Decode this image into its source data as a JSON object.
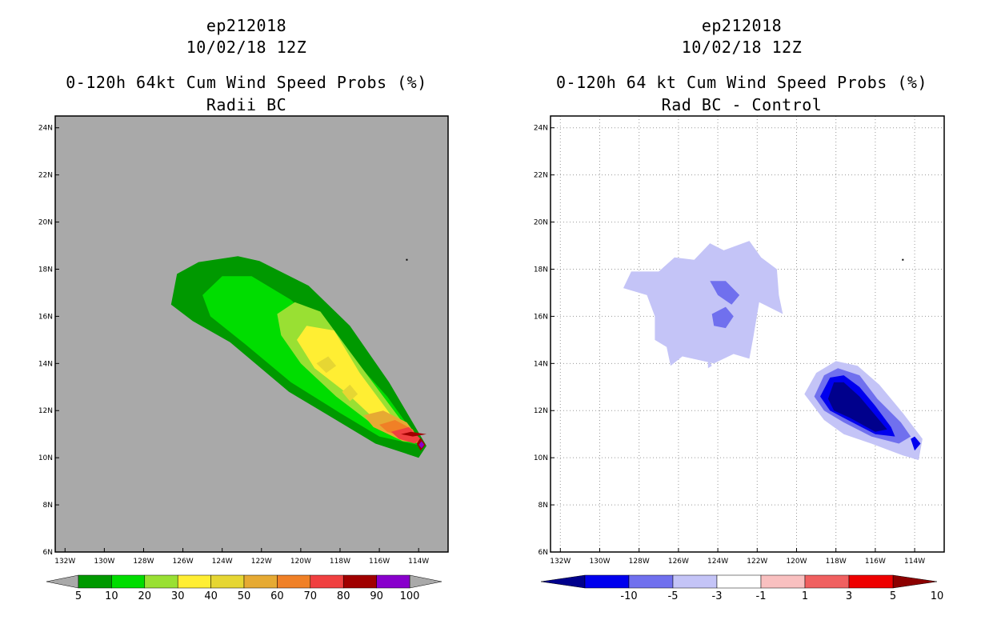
{
  "left_panel": {
    "title_lines": [
      "ep212018",
      "10/02/18 12Z",
      "0-120h 64kt Cum Wind Speed Probs (%)",
      "Radii BC"
    ]
  },
  "right_panel": {
    "title_lines": [
      "ep212018",
      "10/02/18 12Z",
      "0-120h 64 kt Cum Wind Speed Probs (%)",
      "Rad BC - Control"
    ]
  },
  "chart_data": [
    {
      "type": "contour-map",
      "title": "0-120h 64kt Cum Wind Speed Probs (%)",
      "subtitle": "Radii BC",
      "storm": "ep212018",
      "date": "10/02/18 12Z",
      "background_color": "#a9a9a9",
      "lon_ticks": [
        "132W",
        "130W",
        "128W",
        "126W",
        "124W",
        "122W",
        "120W",
        "118W",
        "116W",
        "114W"
      ],
      "lat_ticks": [
        "6N",
        "8N",
        "10N",
        "12N",
        "14N",
        "16N",
        "18N",
        "20N",
        "22N",
        "24N"
      ],
      "lon_range": [
        -132.5,
        -112.5
      ],
      "lat_range": [
        6,
        24.5
      ],
      "grid": false,
      "colorbar": {
        "labels": [
          "5",
          "10",
          "20",
          "30",
          "40",
          "50",
          "60",
          "70",
          "80",
          "90",
          "100"
        ],
        "colors": [
          "#009900",
          "#00dd00",
          "#99e033",
          "#ffee33",
          "#e6d633",
          "#e6aa33",
          "#f08026",
          "#f04040",
          "#a00000",
          "#8800cc"
        ]
      },
      "contours": [
        {
          "level": 5,
          "color": "#009900",
          "points": [
            [
              -126.6,
              16.5
            ],
            [
              -126.3,
              17.8
            ],
            [
              -125.2,
              18.3
            ],
            [
              -123.2,
              18.55
            ],
            [
              -122.1,
              18.35
            ],
            [
              -119.6,
              17.3
            ],
            [
              -117.5,
              15.6
            ],
            [
              -115.5,
              13.2
            ],
            [
              -113.6,
              10.5
            ],
            [
              -114.0,
              10.0
            ],
            [
              -116.2,
              10.6
            ],
            [
              -118.2,
              11.6
            ],
            [
              -120.6,
              12.8
            ],
            [
              -123.6,
              14.9
            ],
            [
              -125.5,
              15.8
            ]
          ]
        },
        {
          "level": 10,
          "color": "#00dd00",
          "points": [
            [
              -125.0,
              16.9
            ],
            [
              -124.0,
              17.7
            ],
            [
              -122.5,
              17.7
            ],
            [
              -120.5,
              16.7
            ],
            [
              -118.0,
              14.8
            ],
            [
              -115.6,
              12.6
            ],
            [
              -113.8,
              10.5
            ],
            [
              -116.0,
              10.9
            ],
            [
              -118.0,
              11.9
            ],
            [
              -120.5,
              13.2
            ],
            [
              -122.8,
              14.8
            ],
            [
              -124.6,
              16.0
            ]
          ]
        },
        {
          "level": 20,
          "color": "#99e033",
          "points": [
            [
              -121.2,
              16.1
            ],
            [
              -120.3,
              16.6
            ],
            [
              -119.0,
              16.2
            ],
            [
              -117.5,
              14.5
            ],
            [
              -115.8,
              12.6
            ],
            [
              -114.0,
              10.6
            ],
            [
              -116.0,
              11.2
            ],
            [
              -118.2,
              12.6
            ],
            [
              -120.0,
              14.0
            ],
            [
              -121.0,
              15.2
            ]
          ]
        },
        {
          "level": 30,
          "color": "#ffee33",
          "points": [
            [
              -120.2,
              15.0
            ],
            [
              -119.7,
              15.6
            ],
            [
              -118.3,
              15.4
            ],
            [
              -117.0,
              13.6
            ],
            [
              -115.4,
              11.8
            ],
            [
              -114.0,
              10.6
            ],
            [
              -115.8,
              11.3
            ],
            [
              -117.6,
              12.7
            ],
            [
              -119.3,
              13.8
            ]
          ]
        },
        {
          "level": 40,
          "color": "#e6d633",
          "points": [
            [
              -119.2,
              14.0
            ],
            [
              -118.6,
              14.3
            ],
            [
              -118.2,
              13.9
            ],
            [
              -118.7,
              13.6
            ]
          ]
        },
        {
          "level": 40,
          "color": "#e6d633",
          "points": [
            [
              -117.9,
              12.8
            ],
            [
              -117.5,
              13.1
            ],
            [
              -117.1,
              12.7
            ],
            [
              -117.5,
              12.4
            ]
          ]
        },
        {
          "level": 50,
          "color": "#e6aa33",
          "points": [
            [
              -116.8,
              11.8
            ],
            [
              -115.8,
              12.0
            ],
            [
              -114.6,
              11.5
            ],
            [
              -113.8,
              10.6
            ],
            [
              -114.8,
              10.7
            ],
            [
              -116.3,
              11.3
            ]
          ]
        },
        {
          "level": 60,
          "color": "#f08026",
          "points": [
            [
              -116.0,
              11.4
            ],
            [
              -115.2,
              11.6
            ],
            [
              -114.3,
              11.2
            ],
            [
              -113.9,
              10.6
            ],
            [
              -114.8,
              10.9
            ],
            [
              -115.6,
              11.1
            ]
          ]
        },
        {
          "level": 70,
          "color": "#f04040",
          "points": [
            [
              -115.4,
              11.1
            ],
            [
              -114.5,
              11.3
            ],
            [
              -113.9,
              10.8
            ],
            [
              -114.2,
              10.6
            ],
            [
              -115.0,
              10.8
            ]
          ]
        },
        {
          "level": 80,
          "color": "#a00000",
          "points": [
            [
              -114.9,
              11.0
            ],
            [
              -114.4,
              11.1
            ],
            [
              -113.6,
              11.0
            ],
            [
              -114.3,
              10.9
            ]
          ]
        },
        {
          "level": 80,
          "color": "#a00000",
          "points": [
            [
              -114.1,
              10.6
            ],
            [
              -113.9,
              10.85
            ],
            [
              -113.65,
              10.55
            ],
            [
              -113.9,
              10.3
            ]
          ]
        },
        {
          "level": 90,
          "color": "#8800cc",
          "points": [
            [
              -114.0,
              10.55
            ],
            [
              -113.85,
              10.7
            ],
            [
              -113.72,
              10.55
            ],
            [
              -113.85,
              10.4
            ]
          ]
        }
      ],
      "marks": [
        {
          "label": "",
          "lon": -114.6,
          "lat": 18.4
        }
      ]
    },
    {
      "type": "contour-map",
      "title": "0-120h 64 kt Cum Wind Speed Probs (%)",
      "subtitle": "Rad BC - Control",
      "storm": "ep212018",
      "date": "10/02/18 12Z",
      "background_color": "#ffffff",
      "lon_ticks": [
        "132W",
        "130W",
        "128W",
        "126W",
        "124W",
        "122W",
        "120W",
        "118W",
        "116W",
        "114W"
      ],
      "lat_ticks": [
        "6N",
        "8N",
        "10N",
        "12N",
        "14N",
        "16N",
        "18N",
        "20N",
        "22N",
        "24N"
      ],
      "lon_range": [
        -132.5,
        -112.5
      ],
      "lat_range": [
        6,
        24.5
      ],
      "grid": true,
      "colorbar": {
        "labels": [
          "-10",
          "-5",
          "-3",
          "-1",
          "1",
          "3",
          "5",
          "10"
        ],
        "colors": [
          "#00008c",
          "#0000ee",
          "#7070ee",
          "#c4c4f7",
          "#ffffff",
          "#f9c0c0",
          "#f06060",
          "#ee0000",
          "#8c0000"
        ]
      },
      "contours": [
        {
          "level": -1,
          "color": "#c4c4f7",
          "points": [
            [
              -128.8,
              17.2
            ],
            [
              -128.4,
              17.9
            ],
            [
              -127.0,
              17.9
            ],
            [
              -126.2,
              18.5
            ],
            [
              -125.2,
              18.4
            ],
            [
              -124.4,
              19.1
            ],
            [
              -123.7,
              18.8
            ],
            [
              -122.4,
              19.2
            ],
            [
              -121.8,
              18.5
            ],
            [
              -121.0,
              18.0
            ],
            [
              -120.9,
              16.9
            ],
            [
              -120.7,
              16.1
            ],
            [
              -121.9,
              16.6
            ],
            [
              -122.2,
              15.1
            ],
            [
              -122.4,
              14.2
            ],
            [
              -123.2,
              14.4
            ],
            [
              -124.2,
              14.0
            ],
            [
              -125.8,
              14.3
            ],
            [
              -126.4,
              13.9
            ],
            [
              -126.6,
              14.7
            ],
            [
              -127.2,
              15.0
            ],
            [
              -127.2,
              16.0
            ],
            [
              -127.6,
              16.9
            ]
          ]
        },
        {
          "level": -3,
          "color": "#7070ee",
          "points": [
            [
              -124.4,
              17.5
            ],
            [
              -123.6,
              17.5
            ],
            [
              -122.9,
              16.9
            ],
            [
              -123.3,
              16.5
            ],
            [
              -124.0,
              16.9
            ]
          ]
        },
        {
          "level": -3,
          "color": "#7070ee",
          "points": [
            [
              -124.3,
              16.1
            ],
            [
              -123.6,
              16.4
            ],
            [
              -123.2,
              16.0
            ],
            [
              -123.6,
              15.5
            ],
            [
              -124.2,
              15.6
            ]
          ]
        },
        {
          "level": -1,
          "color": "#c4c4f7",
          "points": [
            [
              -124.5,
              14.2
            ],
            [
              -124.3,
              13.9
            ],
            [
              -124.5,
              13.8
            ]
          ]
        },
        {
          "level": -1,
          "color": "#c4c4f7",
          "points": [
            [
              -119.6,
              12.7
            ],
            [
              -119.0,
              13.6
            ],
            [
              -118.0,
              14.1
            ],
            [
              -116.9,
              13.9
            ],
            [
              -115.8,
              13.1
            ],
            [
              -114.6,
              11.9
            ],
            [
              -113.6,
              10.8
            ],
            [
              -113.8,
              9.9
            ],
            [
              -114.6,
              10.1
            ],
            [
              -116.2,
              10.6
            ],
            [
              -117.6,
              11.0
            ],
            [
              -118.6,
              11.6
            ]
          ]
        },
        {
          "level": -3,
          "color": "#7070ee",
          "points": [
            [
              -119.1,
              12.6
            ],
            [
              -118.6,
              13.5
            ],
            [
              -117.9,
              13.8
            ],
            [
              -116.8,
              13.5
            ],
            [
              -115.9,
              12.5
            ],
            [
              -114.7,
              11.5
            ],
            [
              -114.2,
              10.9
            ],
            [
              -114.8,
              10.6
            ],
            [
              -116.2,
              10.9
            ],
            [
              -117.6,
              11.5
            ],
            [
              -118.6,
              12.0
            ]
          ]
        },
        {
          "level": -5,
          "color": "#0000ee",
          "points": [
            [
              -118.8,
              12.6
            ],
            [
              -118.3,
              13.4
            ],
            [
              -117.6,
              13.5
            ],
            [
              -116.8,
              13.0
            ],
            [
              -116.0,
              12.2
            ],
            [
              -115.2,
              11.3
            ],
            [
              -115.0,
              10.9
            ],
            [
              -116.0,
              11.0
            ],
            [
              -117.4,
              11.6
            ],
            [
              -118.3,
              12.0
            ]
          ]
        },
        {
          "level": -10,
          "color": "#00008c",
          "points": [
            [
              -118.4,
              12.5
            ],
            [
              -118.1,
              13.2
            ],
            [
              -117.6,
              13.2
            ],
            [
              -116.8,
              12.6
            ],
            [
              -116.0,
              11.8
            ],
            [
              -115.4,
              11.2
            ],
            [
              -116.0,
              11.1
            ],
            [
              -117.3,
              11.7
            ],
            [
              -118.1,
              12.0
            ]
          ]
        },
        {
          "level": -5,
          "color": "#0000ee",
          "points": [
            [
              -114.2,
              10.8
            ],
            [
              -114.0,
              10.9
            ],
            [
              -113.7,
              10.6
            ],
            [
              -114.0,
              10.3
            ]
          ]
        }
      ],
      "marks": [
        {
          "label": "",
          "lon": -114.6,
          "lat": 18.4
        }
      ]
    }
  ]
}
